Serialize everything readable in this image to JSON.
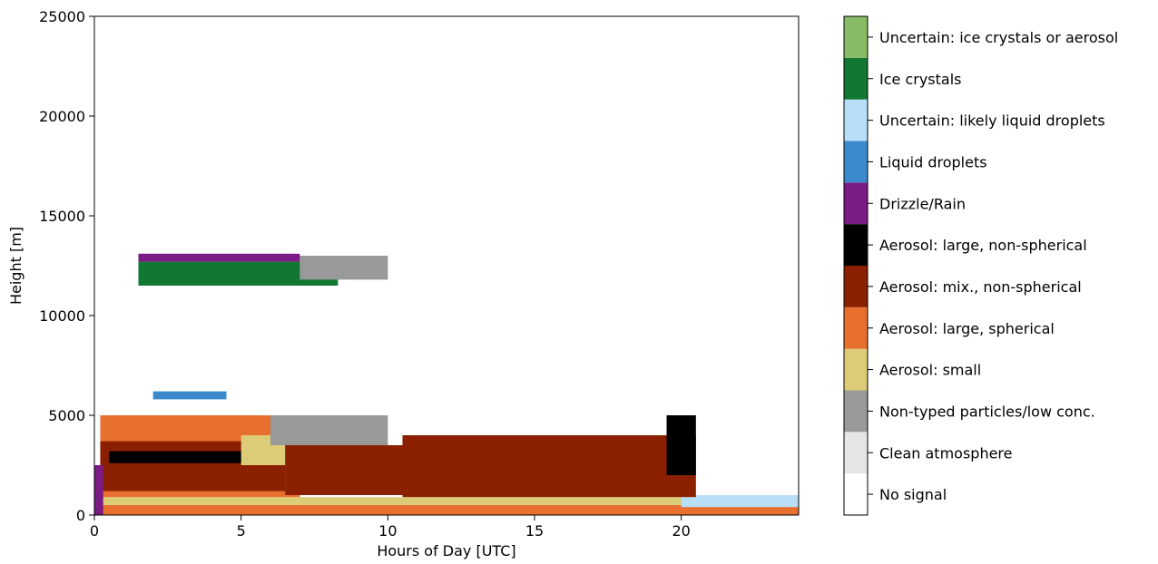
{
  "chart_data": {
    "type": "heatmap",
    "title": "",
    "xlabel": "Hours of Day [UTC]",
    "ylabel": "Height [m]",
    "xlim": [
      0,
      24
    ],
    "ylim": [
      0,
      25000
    ],
    "xticks": [
      0,
      5,
      10,
      15,
      20
    ],
    "yticks": [
      0,
      5000,
      10000,
      15000,
      20000,
      25000
    ],
    "grid": false,
    "legend_position": "right (colorbar)",
    "classes": [
      {
        "label": "No signal",
        "color": "#ffffff"
      },
      {
        "label": "Clean atmosphere",
        "color": "#e6e6e6"
      },
      {
        "label": "Non-typed particles/low conc.",
        "color": "#999999"
      },
      {
        "label": "Aerosol: small",
        "color": "#ddcc77"
      },
      {
        "label": "Aerosol: large, spherical",
        "color": "#e8702f"
      },
      {
        "label": "Aerosol: mix., non-spherical",
        "color": "#8b2000"
      },
      {
        "label": "Aerosol: large, non-spherical",
        "color": "#000000"
      },
      {
        "label": "Drizzle/Rain",
        "color": "#7b1c86"
      },
      {
        "label": "Liquid droplets",
        "color": "#3b8bcc"
      },
      {
        "label": "Uncertain: likely liquid droplets",
        "color": "#b8dff7"
      },
      {
        "label": "Ice crystals",
        "color": "#117733"
      },
      {
        "label": "Uncertain: ice crystals or aerosol",
        "color": "#88bb66"
      }
    ],
    "regions": [
      {
        "class": "Aerosol: large, spherical",
        "x": [
          0,
          24
        ],
        "y": [
          0,
          500
        ]
      },
      {
        "class": "Aerosol: small",
        "x": [
          0.2,
          20.5
        ],
        "y": [
          500,
          900
        ]
      },
      {
        "class": "Uncertain: likely liquid droplets",
        "x": [
          20,
          24
        ],
        "y": [
          400,
          1000
        ]
      },
      {
        "class": "Aerosol: large, spherical",
        "x": [
          0.2,
          7
        ],
        "y": [
          900,
          5000
        ]
      },
      {
        "class": "Aerosol: mix., non-spherical",
        "x": [
          0.2,
          6.5
        ],
        "y": [
          1200,
          3700
        ]
      },
      {
        "class": "Aerosol: large, non-spherical",
        "x": [
          0.5,
          6
        ],
        "y": [
          2600,
          3200
        ]
      },
      {
        "class": "Aerosol: small",
        "x": [
          5,
          8
        ],
        "y": [
          2500,
          4000
        ]
      },
      {
        "class": "Aerosol: mix., non-spherical",
        "x": [
          6.5,
          10.5
        ],
        "y": [
          1000,
          3500
        ]
      },
      {
        "class": "Non-typed particles/low conc.",
        "x": [
          6,
          10
        ],
        "y": [
          3500,
          5000
        ]
      },
      {
        "class": "Aerosol: mix., non-spherical",
        "x": [
          10.5,
          20.5
        ],
        "y": [
          900,
          4000
        ]
      },
      {
        "class": "Aerosol: large, non-spherical",
        "x": [
          19.5,
          20.5
        ],
        "y": [
          2000,
          5000
        ]
      },
      {
        "class": "Liquid droplets",
        "x": [
          2,
          4.5
        ],
        "y": [
          5800,
          6200
        ]
      },
      {
        "class": "Drizzle/Rain",
        "x": [
          0,
          0.3
        ],
        "y": [
          0,
          2500
        ]
      },
      {
        "class": "Ice crystals",
        "x": [
          1.5,
          8.3
        ],
        "y": [
          11500,
          12700
        ]
      },
      {
        "class": "Non-typed particles/low conc.",
        "x": [
          7,
          10
        ],
        "y": [
          11800,
          13000
        ]
      },
      {
        "class": "Drizzle/Rain",
        "x": [
          1.5,
          7
        ],
        "y": [
          12700,
          13100
        ]
      }
    ]
  }
}
